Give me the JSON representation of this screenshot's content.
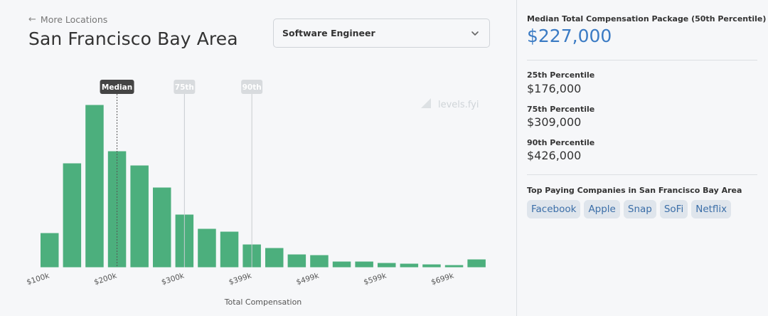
{
  "nav": {
    "back_label": "More Locations"
  },
  "page": {
    "title": "San Francisco Bay Area"
  },
  "role_select": {
    "value": "Software Engineer"
  },
  "chart_data": {
    "type": "bar",
    "xlabel": "Total Compensation",
    "ylabel": "",
    "x_ticks": [
      "$100k",
      "$200k",
      "$300k",
      "$399k",
      "$499k",
      "$599k",
      "$699k"
    ],
    "values": [
      48,
      146,
      228,
      163,
      143,
      112,
      74,
      54,
      50,
      32,
      27,
      18,
      17,
      8,
      8,
      6,
      5,
      4,
      3,
      11
    ],
    "markers": [
      {
        "label": "Median",
        "bin": 3.5,
        "style": "dark"
      },
      {
        "label": "75th",
        "bin": 6.5,
        "style": "light"
      },
      {
        "label": "90th",
        "bin": 9.5,
        "style": "light"
      }
    ],
    "watermark": "levels.fyi",
    "bar_color": "#4caf7d"
  },
  "stats": {
    "median_label": "Median Total Compensation Package (50th Percentile)",
    "median_value": "$227,000",
    "p25_label": "25th Percentile",
    "p25_value": "$176,000",
    "p75_label": "75th Percentile",
    "p75_value": "$309,000",
    "p90_label": "90th Percentile",
    "p90_value": "$426,000"
  },
  "top_companies": {
    "title": "Top Paying Companies in San Francisco Bay Area",
    "items": [
      "Facebook",
      "Apple",
      "Snap",
      "SoFi",
      "Netflix"
    ]
  }
}
